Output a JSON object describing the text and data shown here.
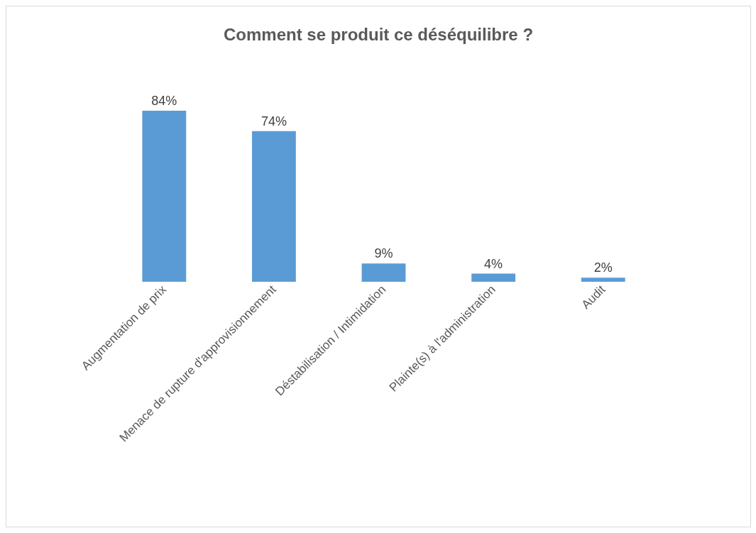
{
  "chart_data": {
    "type": "bar",
    "title": "Comment se produit ce déséquilibre ?",
    "categories": [
      "Augmentation de prix",
      "Menace de rupture d'approvisionnement",
      "Déstabilisation / Intimidation",
      "Plainte(s) à l'administration",
      "Audit"
    ],
    "values": [
      84,
      74,
      9,
      4,
      2
    ],
    "value_labels": [
      "84%",
      "74%",
      "9%",
      "4%",
      "2%"
    ],
    "color": "#5b9bd5"
  }
}
